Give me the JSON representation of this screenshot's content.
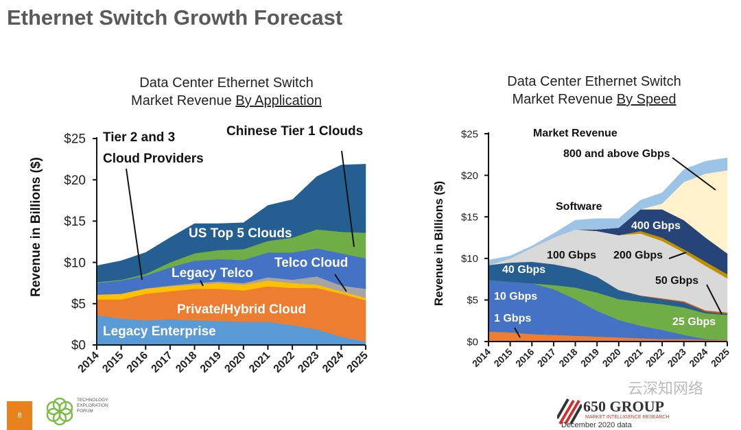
{
  "title": "Ethernet Switch Growth Forecast",
  "footer": {
    "page_number": "8",
    "tef_logo_text": "TECHNOLOGY EXPLORATION FORUM",
    "group_logo": "650 GROUP",
    "group_tagline": "MARKET INTELLIGENCE RESEARCH",
    "data_note": "December 2020 data",
    "watermark": "云深知网络"
  },
  "chart_data": [
    {
      "type": "area",
      "stacked": true,
      "title_line1": "Data Center Ethernet Switch",
      "title_line2_prefix": "Market Revenue ",
      "title_line2_underlined": "By Application",
      "ylabel": "Revenue in Billions ($)",
      "xlabel": "",
      "ylim": [
        0,
        25
      ],
      "yticks": [
        "$0",
        "$5",
        "$10",
        "$15",
        "$20",
        "$25"
      ],
      "categories": [
        "2014",
        "2015",
        "2016",
        "2017",
        "2018",
        "2019",
        "2020",
        "2021",
        "2022",
        "2023",
        "2024",
        "2025"
      ],
      "series": [
        {
          "name": "Legacy Enterprise",
          "color": "#5b9bd5",
          "values": [
            3.6,
            3.2,
            3.0,
            3.1,
            3.0,
            2.9,
            2.8,
            2.8,
            2.4,
            1.9,
            1.0,
            0.4
          ]
        },
        {
          "name": "Private/Hybrid Cloud",
          "color": "#ed7d31",
          "values": [
            1.9,
            2.3,
            3.2,
            3.4,
            3.8,
            3.9,
            3.8,
            4.3,
            4.5,
            5.0,
            5.2,
            5.0
          ]
        },
        {
          "name": "Legacy Telco",
          "color": "#ffc000",
          "values": [
            0.6,
            0.7,
            0.6,
            0.6,
            0.5,
            0.7,
            0.7,
            0.7,
            0.6,
            0.4,
            0.3,
            0.3
          ]
        },
        {
          "name": "Telco Cloud",
          "color": "#a5a5a5",
          "values": [
            0,
            0,
            0.05,
            0.1,
            0.2,
            0.2,
            0.2,
            0.4,
            0.4,
            1.0,
            0.7,
            1.1
          ]
        },
        {
          "name": "Tier 2 and 3 Cloud Providers",
          "color": "#4472c4",
          "values": [
            1.4,
            1.6,
            1.55,
            2.2,
            2.7,
            2.7,
            2.8,
            3.0,
            3.3,
            3.4,
            3.9,
            3.7
          ]
        },
        {
          "name": "Chinese Tier 1 Clouds",
          "color": "#70ad47",
          "values": [
            0.1,
            0.1,
            0.2,
            0.6,
            0.9,
            1.1,
            1.3,
            1.4,
            1.8,
            2.3,
            2.6,
            3.1
          ]
        },
        {
          "name": "US Top 5 Clouds",
          "color": "#255e91",
          "values": [
            2.0,
            2.3,
            2.6,
            3.0,
            3.6,
            3.2,
            3.2,
            4.3,
            4.6,
            6.4,
            8.1,
            8.3
          ]
        }
      ],
      "annotations": {
        "tier23_line1": "Tier 2 and 3",
        "tier23_line2": "Cloud Providers",
        "chinese": "Chinese Tier 1 Clouds",
        "us_top5": "US Top 5 Clouds",
        "legacy_telco": "Legacy Telco",
        "telco_cloud": "Telco Cloud",
        "private_hybrid": "Private/Hybrid Cloud",
        "legacy_enterprise": "Legacy Enterprise"
      }
    },
    {
      "type": "area",
      "stacked": true,
      "title_line1": "Data Center Ethernet Switch",
      "title_line2_prefix": "Market Revenue ",
      "title_line2_underlined": "By Speed",
      "ylabel": "Revenue in Billions ($)",
      "xlabel": "",
      "ylim": [
        0,
        25
      ],
      "yticks": [
        "$0",
        "$5",
        "$10",
        "$15",
        "$20",
        "$25"
      ],
      "categories": [
        "2014",
        "2015",
        "2016",
        "2017",
        "2018",
        "2019",
        "2020",
        "2021",
        "2022",
        "2023",
        "2024",
        "2025"
      ],
      "series": [
        {
          "name": "1 Gbps",
          "color": "#ed7d31",
          "values": [
            1.2,
            1.1,
            0.9,
            0.8,
            0.7,
            0.6,
            0.5,
            0.4,
            0.3,
            0.3,
            0.2,
            0.2
          ]
        },
        {
          "name": "10 Gbps",
          "color": "#4472c4",
          "values": [
            6.2,
            6.1,
            6.1,
            5.5,
            4.4,
            3.1,
            2.1,
            1.5,
            1.1,
            0.5,
            0.1,
            0.0
          ]
        },
        {
          "name": "25 Gbps",
          "color": "#70ad47",
          "values": [
            0,
            0,
            0,
            0.5,
            1.4,
            2.2,
            2.5,
            2.9,
            3.1,
            3.3,
            3.1,
            3.0
          ]
        },
        {
          "name": "40 Gbps",
          "color": "#255e91",
          "values": [
            1.8,
            2.3,
            2.6,
            2.5,
            2.3,
            1.9,
            1.1,
            0.7,
            0.6,
            0.6,
            0.2,
            0.1
          ]
        },
        {
          "name": "50 Gbps",
          "color": "#c55a11",
          "values": [
            0,
            0,
            0,
            0,
            0,
            0,
            0,
            0.05,
            0.1,
            0.15,
            0.15,
            0.2
          ]
        },
        {
          "name": "100 Gbps",
          "color": "#d9d9d9",
          "values": [
            0,
            0.5,
            1.7,
            3.2,
            4.7,
            5.5,
            6.6,
            7.45,
            6.9,
            5.85,
            5.35,
            4.1
          ]
        },
        {
          "name": "200 Gbps",
          "color": "#bf9000",
          "values": [
            0,
            0,
            0,
            0,
            0,
            0,
            0,
            0.3,
            0.4,
            0.4,
            0.5,
            0.5
          ]
        },
        {
          "name": "400 Gbps",
          "color": "#264478",
          "values": [
            0,
            0,
            0,
            0,
            0,
            0.2,
            0.9,
            2.6,
            3.4,
            3.5,
            2.9,
            2.5
          ]
        },
        {
          "name": "800 and above Gbps",
          "color": "#fff2cc",
          "values": [
            0,
            0,
            0,
            0,
            0,
            0,
            0,
            0,
            0.7,
            4.6,
            7.7,
            10.0
          ]
        },
        {
          "name": "Software",
          "color": "#9dc3e6",
          "values": [
            0.6,
            0.3,
            0.2,
            0.5,
            1.1,
            1.3,
            1.1,
            1.1,
            1.3,
            1.5,
            1.5,
            1.5
          ]
        }
      ],
      "annotations": {
        "market_revenue": "Market Revenue",
        "g800": "800 and above Gbps",
        "software": "Software",
        "g400": "400 Gbps",
        "g100": "100 Gbps",
        "g200": "200 Gbps",
        "g50": "50 Gbps",
        "g40": "40 Gbps",
        "g10": "10 Gbps",
        "g1": "1 Gbps",
        "g25": "25 Gbps"
      }
    }
  ]
}
